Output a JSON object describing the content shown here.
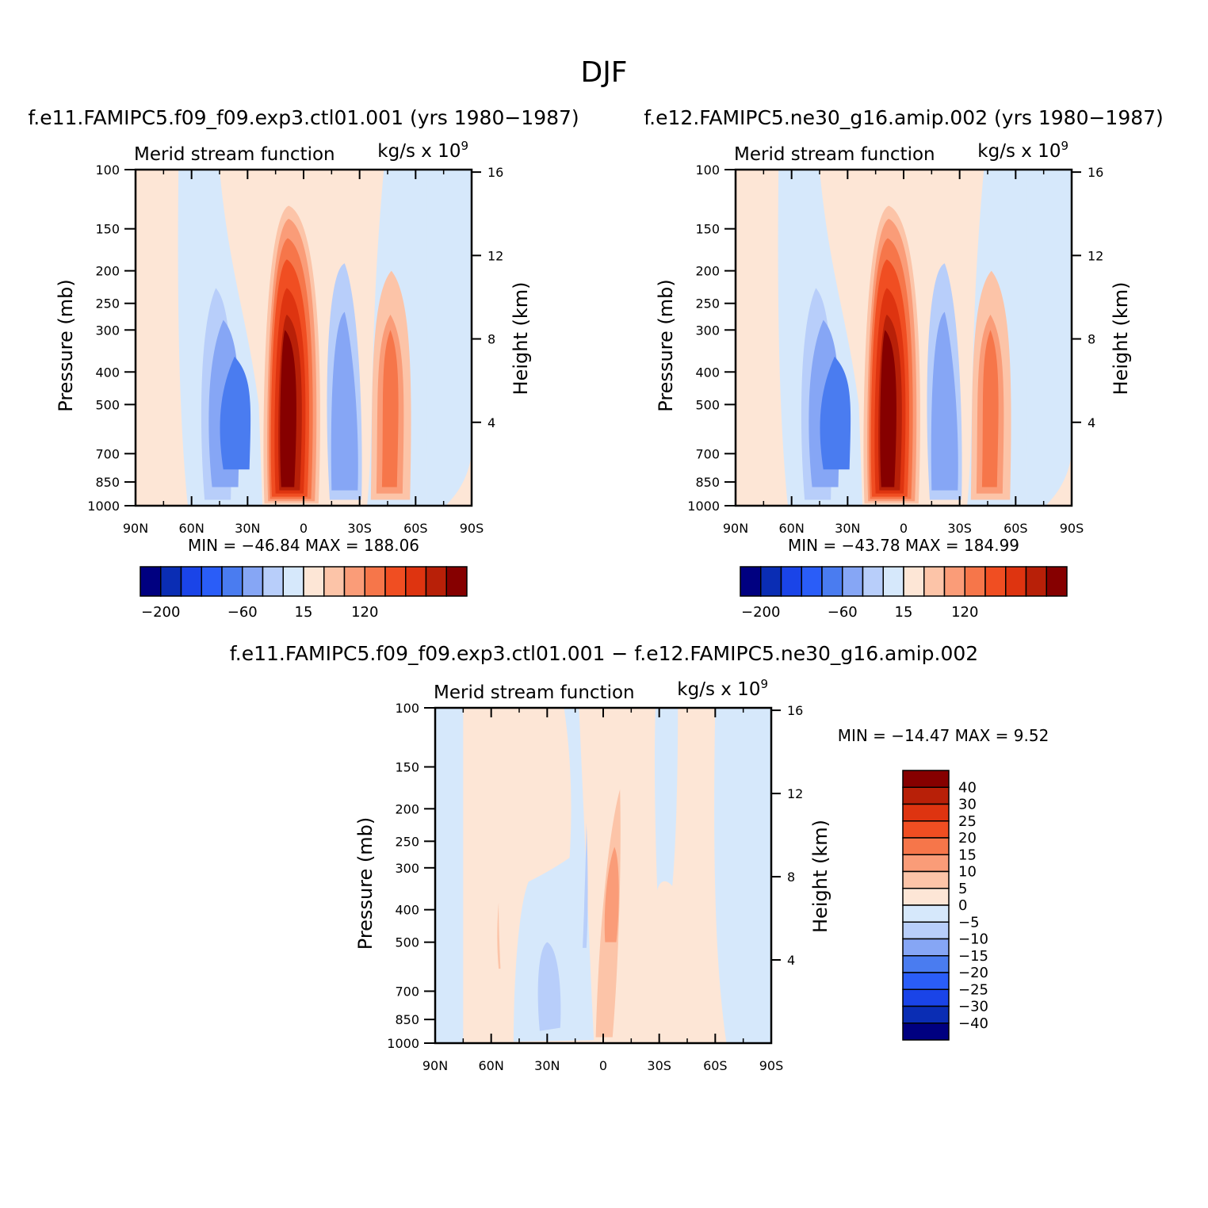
{
  "page_title": "DJF",
  "colors": {
    "frame": "#000000",
    "neg_light": "#d6e8fb",
    "pos_light": "#fde6d6"
  },
  "chart_data": [
    {
      "type": "heatmap",
      "id": "panel-left",
      "header": "f.e11.FAMIPC5.f09_f09.exp3.ctl01.001 (yrs 1980−1987)",
      "title": "Merid stream function",
      "units": "kg/s x 10",
      "units_exp": "9",
      "ylabel": "Pressure (mb)",
      "ylabel_right": "Height (km)",
      "x_ticks": [
        "90N",
        "60N",
        "30N",
        "0",
        "30S",
        "60S",
        "90S"
      ],
      "y_ticks": [
        "100",
        "150",
        "200",
        "250",
        "300",
        "400",
        "500",
        "700",
        "850",
        "1000"
      ],
      "y_ticks_right": [
        "16",
        "12",
        "8",
        "4"
      ],
      "stats": "MIN = −46.84   MAX = 188.06",
      "colorbar": {
        "orientation": "horizontal",
        "labels": [
          "−200",
          "−60",
          "15",
          "120"
        ],
        "colors": [
          "#000080",
          "#0a2db4",
          "#1a44e8",
          "#2a5df8",
          "#4a7cf0",
          "#86a6f5",
          "#b8cefa",
          "#d6e8fb",
          "#fde6d6",
          "#fcc4a8",
          "#fa9c78",
          "#f6764a",
          "#f04e22",
          "#de3410",
          "#b82008",
          "#860000"
        ]
      },
      "x_range": [
        90,
        -90
      ],
      "y_range": [
        100,
        1000
      ],
      "y_scale": "log",
      "cells": [
        {
          "latitude": -13,
          "pressure": 500,
          "level": 15
        },
        {
          "latitude": 43,
          "pressure": 500,
          "level": 4
        },
        {
          "latitude": -22,
          "pressure": 500,
          "level": 5
        },
        {
          "latitude": 45,
          "pressure": 500,
          "level": 13
        }
      ]
    },
    {
      "type": "heatmap",
      "id": "panel-right",
      "header": "f.e12.FAMIPC5.ne30_g16.amip.002 (yrs 1980−1987)",
      "title": "Merid stream function",
      "units": "kg/s x 10",
      "units_exp": "9",
      "ylabel": "Pressure (mb)",
      "ylabel_right": "Height (km)",
      "x_ticks": [
        "90N",
        "60N",
        "30N",
        "0",
        "30S",
        "60S",
        "90S"
      ],
      "y_ticks": [
        "100",
        "150",
        "200",
        "250",
        "300",
        "400",
        "500",
        "700",
        "850",
        "1000"
      ],
      "y_ticks_right": [
        "16",
        "12",
        "8",
        "4"
      ],
      "stats": "MIN = −43.78   MAX = 184.99",
      "colorbar": {
        "orientation": "horizontal",
        "labels": [
          "−200",
          "−60",
          "15",
          "120"
        ],
        "colors": [
          "#000080",
          "#0a2db4",
          "#1a44e8",
          "#2a5df8",
          "#4a7cf0",
          "#86a6f5",
          "#b8cefa",
          "#d6e8fb",
          "#fde6d6",
          "#fcc4a8",
          "#fa9c78",
          "#f6764a",
          "#f04e22",
          "#de3410",
          "#b82008",
          "#860000"
        ]
      },
      "x_range": [
        90,
        -90
      ],
      "y_range": [
        100,
        1000
      ],
      "y_scale": "log",
      "cells": [
        {
          "latitude": -13,
          "pressure": 500,
          "level": 15
        },
        {
          "latitude": 43,
          "pressure": 500,
          "level": 4
        },
        {
          "latitude": -22,
          "pressure": 500,
          "level": 5
        },
        {
          "latitude": 45,
          "pressure": 500,
          "level": 13
        }
      ]
    },
    {
      "type": "heatmap",
      "id": "panel-diff",
      "header": "f.e11.FAMIPC5.f09_f09.exp3.ctl01.001 − f.e12.FAMIPC5.ne30_g16.amip.002",
      "title": "Merid stream function",
      "units": "kg/s x 10",
      "units_exp": "9",
      "ylabel": "Pressure (mb)",
      "ylabel_right": "Height (km)",
      "x_ticks": [
        "90N",
        "60N",
        "30N",
        "0",
        "30S",
        "60S",
        "90S"
      ],
      "y_ticks": [
        "100",
        "150",
        "200",
        "250",
        "300",
        "400",
        "500",
        "700",
        "850",
        "1000"
      ],
      "y_ticks_right": [
        "16",
        "12",
        "8",
        "4"
      ],
      "stats": "MIN = −14.47   MAX =    9.52",
      "colorbar": {
        "orientation": "vertical",
        "labels": [
          "40",
          "30",
          "25",
          "20",
          "15",
          "10",
          "5",
          "0",
          "−5",
          "−10",
          "−15",
          "−20",
          "−25",
          "−30",
          "−40"
        ],
        "colors": [
          "#860000",
          "#b82008",
          "#de3410",
          "#f04e22",
          "#f6764a",
          "#fa9c78",
          "#fcc4a8",
          "#fde6d6",
          "#d6e8fb",
          "#b8cefa",
          "#86a6f5",
          "#4a7cf0",
          "#2a5df8",
          "#1a44e8",
          "#0a2db4",
          "#000080"
        ]
      },
      "x_range": [
        90,
        -90
      ],
      "y_range": [
        100,
        1000
      ],
      "y_scale": "log",
      "cells": [
        {
          "latitude": 0,
          "pressure": 350,
          "level": 5
        },
        {
          "latitude": 30,
          "pressure": 600,
          "level": 9
        }
      ]
    }
  ]
}
